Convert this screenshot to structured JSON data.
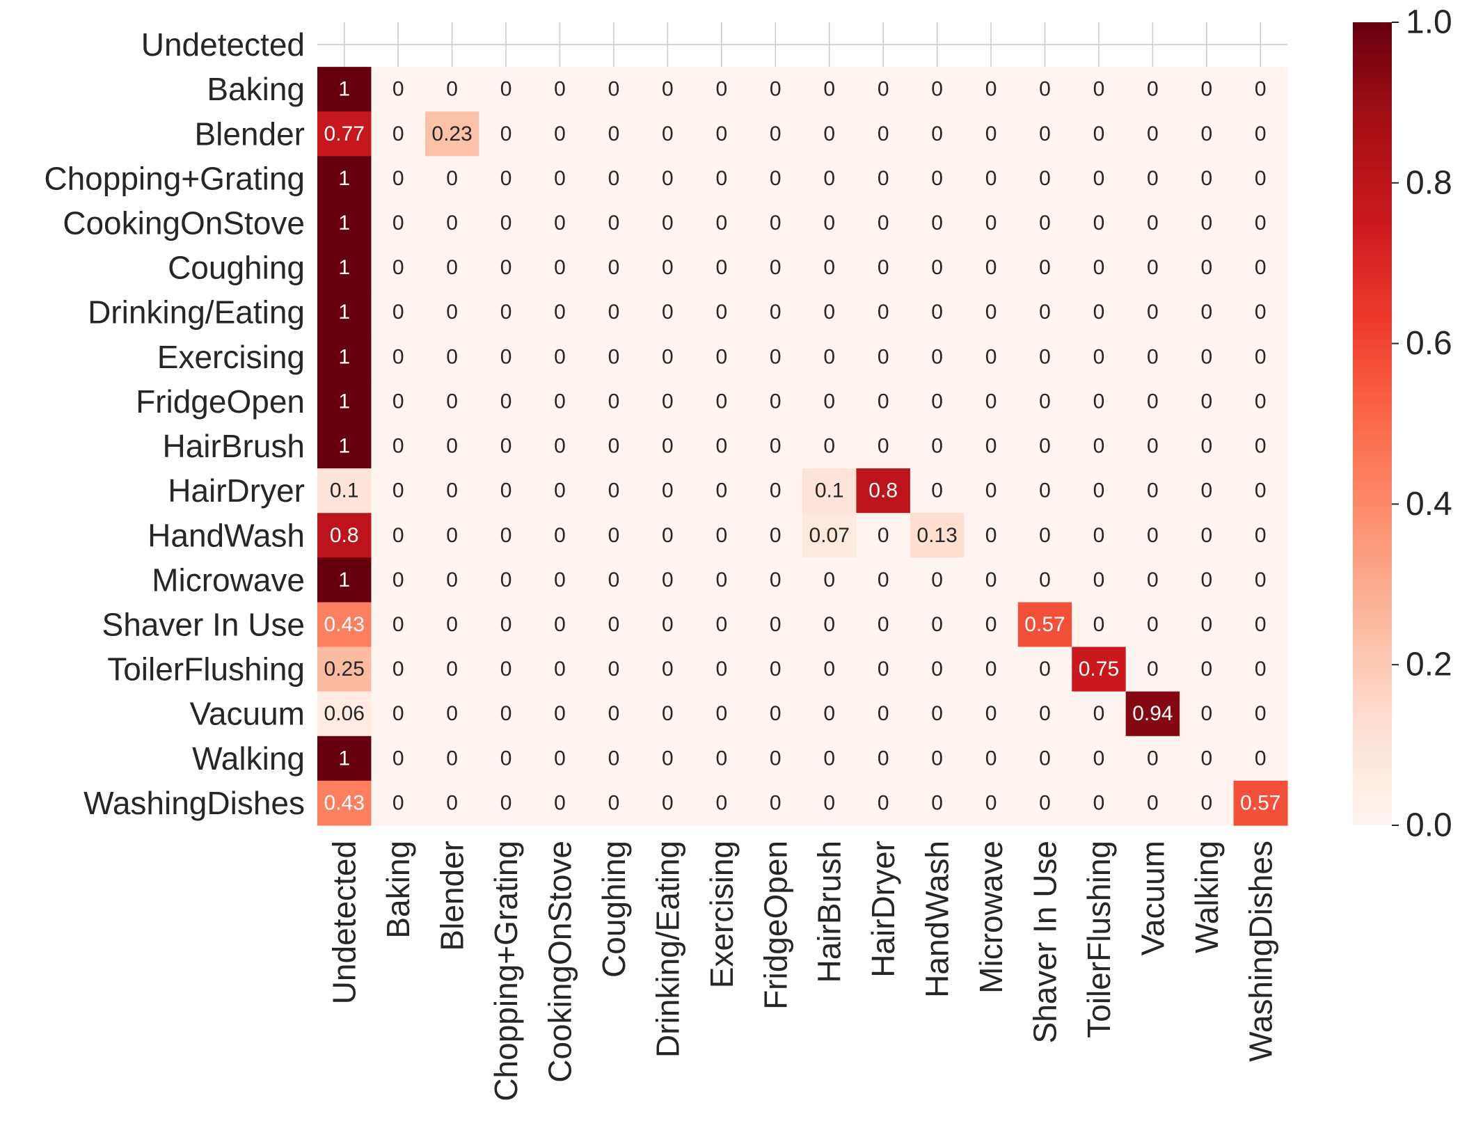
{
  "chart_data": {
    "type": "heatmap",
    "title": "",
    "xlabel": "",
    "ylabel": "",
    "colormap": "Reds",
    "colorbar": {
      "range": [
        0.0,
        1.0
      ],
      "ticks": [
        "0.0",
        "0.2",
        "0.4",
        "0.6",
        "0.8",
        "1.0"
      ]
    },
    "grid": true,
    "x_categories": [
      "Undetected",
      "Baking",
      "Blender",
      "Chopping+Grating",
      "CookingOnStove",
      "Coughing",
      "Drinking/Eating",
      "Exercising",
      "FridgeOpen",
      "HairBrush",
      "HairDryer",
      "HandWash",
      "Microwave",
      "Shaver In Use",
      "ToilerFlushing",
      "Vacuum",
      "Walking",
      "WashingDishes"
    ],
    "y_categories": [
      "Undetected",
      "Baking",
      "Blender",
      "Chopping+Grating",
      "CookingOnStove",
      "Coughing",
      "Drinking/Eating",
      "Exercising",
      "FridgeOpen",
      "HairBrush",
      "HairDryer",
      "HandWash",
      "Microwave",
      "Shaver In Use",
      "ToilerFlushing",
      "Vacuum",
      "Walking",
      "WashingDishes"
    ],
    "values": [
      null,
      [
        1,
        0,
        0,
        0,
        0,
        0,
        0,
        0,
        0,
        0,
        0,
        0,
        0,
        0,
        0,
        0,
        0,
        0
      ],
      [
        0.77,
        0,
        0.23,
        0,
        0,
        0,
        0,
        0,
        0,
        0,
        0,
        0,
        0,
        0,
        0,
        0,
        0,
        0
      ],
      [
        1,
        0,
        0,
        0,
        0,
        0,
        0,
        0,
        0,
        0,
        0,
        0,
        0,
        0,
        0,
        0,
        0,
        0
      ],
      [
        1,
        0,
        0,
        0,
        0,
        0,
        0,
        0,
        0,
        0,
        0,
        0,
        0,
        0,
        0,
        0,
        0,
        0
      ],
      [
        1,
        0,
        0,
        0,
        0,
        0,
        0,
        0,
        0,
        0,
        0,
        0,
        0,
        0,
        0,
        0,
        0,
        0
      ],
      [
        1,
        0,
        0,
        0,
        0,
        0,
        0,
        0,
        0,
        0,
        0,
        0,
        0,
        0,
        0,
        0,
        0,
        0
      ],
      [
        1,
        0,
        0,
        0,
        0,
        0,
        0,
        0,
        0,
        0,
        0,
        0,
        0,
        0,
        0,
        0,
        0,
        0
      ],
      [
        1,
        0,
        0,
        0,
        0,
        0,
        0,
        0,
        0,
        0,
        0,
        0,
        0,
        0,
        0,
        0,
        0,
        0
      ],
      [
        1,
        0,
        0,
        0,
        0,
        0,
        0,
        0,
        0,
        0,
        0,
        0,
        0,
        0,
        0,
        0,
        0,
        0
      ],
      [
        0.1,
        0,
        0,
        0,
        0,
        0,
        0,
        0,
        0,
        0.1,
        0.8,
        0,
        0,
        0,
        0,
        0,
        0,
        0
      ],
      [
        0.8,
        0,
        0,
        0,
        0,
        0,
        0,
        0,
        0,
        0.07,
        0,
        0.13,
        0,
        0,
        0,
        0,
        0,
        0
      ],
      [
        1,
        0,
        0,
        0,
        0,
        0,
        0,
        0,
        0,
        0,
        0,
        0,
        0,
        0,
        0,
        0,
        0,
        0
      ],
      [
        0.43,
        0,
        0,
        0,
        0,
        0,
        0,
        0,
        0,
        0,
        0,
        0,
        0,
        0.57,
        0,
        0,
        0,
        0
      ],
      [
        0.25,
        0,
        0,
        0,
        0,
        0,
        0,
        0,
        0,
        0,
        0,
        0,
        0,
        0,
        0.75,
        0,
        0,
        0
      ],
      [
        0.06,
        0,
        0,
        0,
        0,
        0,
        0,
        0,
        0,
        0,
        0,
        0,
        0,
        0,
        0,
        0.94,
        0,
        0
      ],
      [
        1,
        0,
        0,
        0,
        0,
        0,
        0,
        0,
        0,
        0,
        0,
        0,
        0,
        0,
        0,
        0,
        0,
        0
      ],
      [
        0.43,
        0,
        0,
        0,
        0,
        0,
        0,
        0,
        0,
        0,
        0,
        0,
        0,
        0,
        0,
        0,
        0,
        0.57
      ]
    ]
  }
}
